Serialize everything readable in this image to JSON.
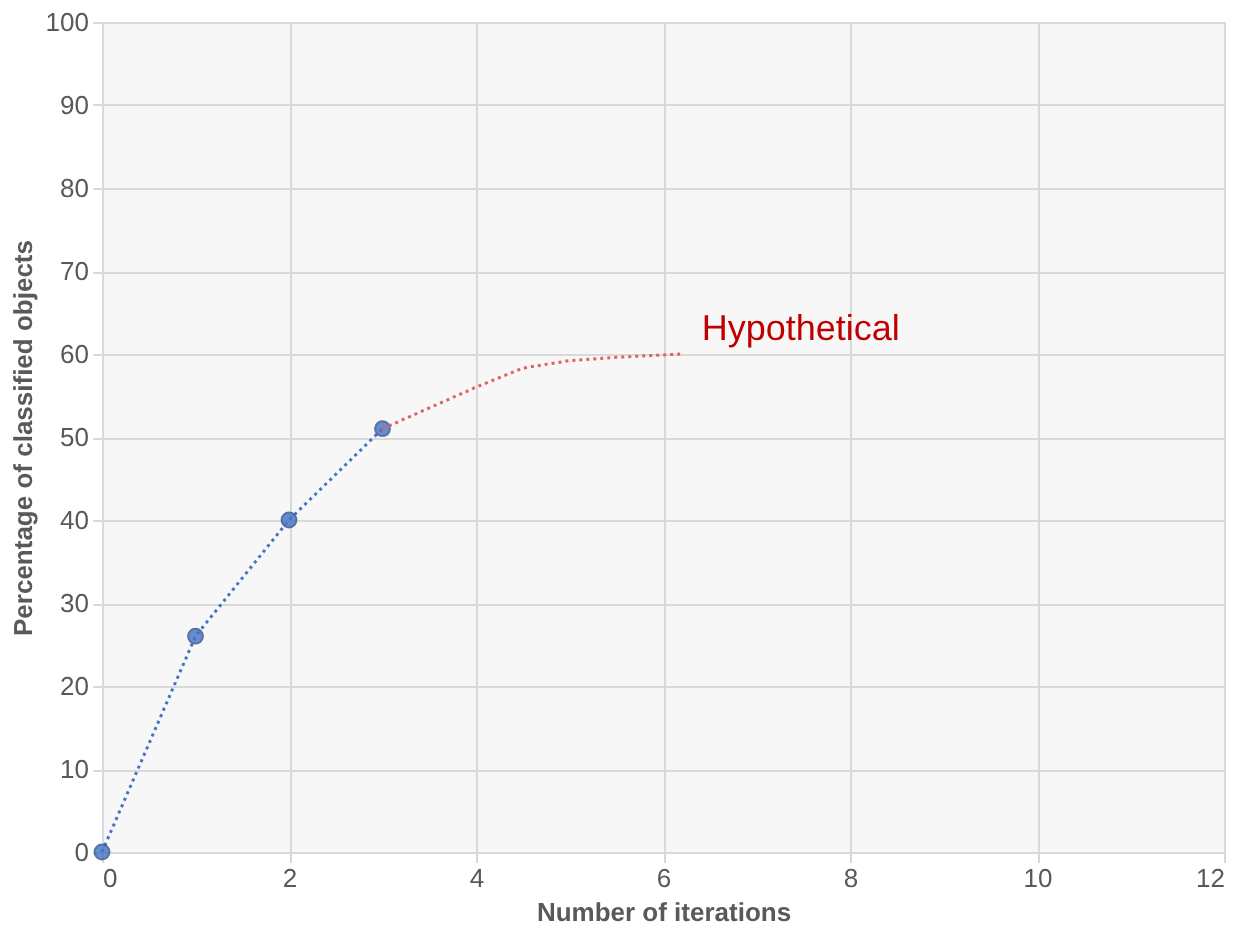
{
  "chart_data": {
    "type": "line",
    "xlabel": "Number of iterations",
    "ylabel": "Percentage of classified objects",
    "xlim": [
      0,
      12
    ],
    "xticks": [
      0,
      2,
      4,
      6,
      8,
      10,
      12
    ],
    "ylim": [
      0,
      100
    ],
    "yticks": [
      0,
      10,
      20,
      30,
      40,
      50,
      60,
      70,
      80,
      90,
      100
    ],
    "grid": true,
    "series": [
      {
        "color": "#4472c4",
        "x": [
          0,
          1,
          2,
          3
        ],
        "values": [
          0,
          26,
          40,
          51
        ],
        "marker": "circle",
        "line_style": "dotted"
      },
      {
        "name": "Hypothetical",
        "color": "#e06060",
        "x": [
          3,
          3.5,
          4,
          4.5,
          5,
          5.5,
          6.2
        ],
        "values": [
          51,
          53.5,
          56,
          58.3,
          59.2,
          59.6,
          60
        ],
        "marker": "none",
        "line_style": "dotted"
      }
    ]
  }
}
